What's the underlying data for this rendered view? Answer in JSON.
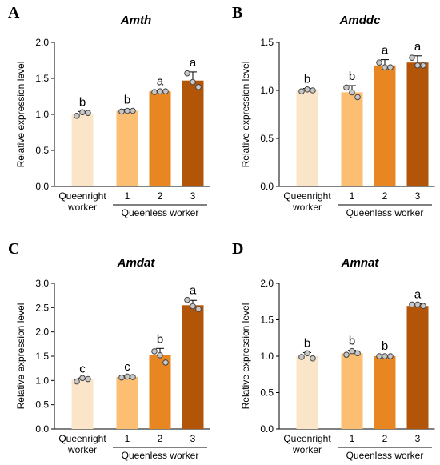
{
  "chart_data": [
    {
      "type": "bar",
      "panel": "A",
      "title": "Amth",
      "ylabel": "Relative expression level",
      "ylim": [
        0,
        2.0
      ],
      "yticks": [
        "0.0",
        "0.5",
        "1.0",
        "1.5",
        "2.0"
      ],
      "categories": [
        "Queenright worker",
        "1",
        "2",
        "3"
      ],
      "group_label": "Queenless worker",
      "values": [
        1.01,
        1.05,
        1.32,
        1.47
      ],
      "errors": [
        0.03,
        0.02,
        0.01,
        0.12
      ],
      "points": [
        [
          0.98,
          1.03,
          1.02
        ],
        [
          1.04,
          1.05,
          1.05
        ],
        [
          1.31,
          1.32,
          1.32
        ],
        [
          1.57,
          1.45,
          1.38
        ]
      ],
      "significance": [
        "b",
        "b",
        "a",
        "a"
      ]
    },
    {
      "type": "bar",
      "panel": "B",
      "title": "Amddc",
      "ylabel": "Relative expression level",
      "ylim": [
        0,
        1.5
      ],
      "yticks": [
        "0.0",
        "0.5",
        "1.0",
        "1.5"
      ],
      "categories": [
        "Queenright worker",
        "1",
        "2",
        "3"
      ],
      "group_label": "Queenless worker",
      "values": [
        1.0,
        0.98,
        1.26,
        1.29
      ],
      "errors": [
        0.02,
        0.07,
        0.06,
        0.07
      ],
      "points": [
        [
          0.99,
          1.01,
          1.0
        ],
        [
          1.03,
          0.98,
          0.93
        ],
        [
          1.29,
          1.24,
          1.24
        ],
        [
          1.34,
          1.26,
          1.26
        ]
      ],
      "significance": [
        "b",
        "b",
        "a",
        "a"
      ]
    },
    {
      "type": "bar",
      "panel": "C",
      "title": "Amdat",
      "ylabel": "Relative expression level",
      "ylim": [
        0,
        3.0
      ],
      "yticks": [
        "0.0",
        "0.5",
        "1.0",
        "1.5",
        "2.0",
        "2.5",
        "3.0"
      ],
      "categories": [
        "Queenright worker",
        "1",
        "2",
        "3"
      ],
      "group_label": "Queenless worker",
      "values": [
        1.02,
        1.07,
        1.52,
        2.55
      ],
      "errors": [
        0.03,
        0.02,
        0.14,
        0.1
      ],
      "points": [
        [
          0.98,
          1.05,
          1.03
        ],
        [
          1.06,
          1.08,
          1.07
        ],
        [
          1.6,
          1.52,
          1.37
        ],
        [
          2.66,
          2.53,
          2.47
        ]
      ],
      "significance": [
        "c",
        "c",
        "b",
        "a"
      ]
    },
    {
      "type": "bar",
      "panel": "D",
      "title": "Amnat",
      "ylabel": "Relative expression level",
      "ylim": [
        0,
        2.0
      ],
      "yticks": [
        "0.0",
        "0.5",
        "1.0",
        "1.5",
        "2.0"
      ],
      "categories": [
        "Queenright worker",
        "1",
        "2",
        "3"
      ],
      "group_label": "Queenless worker",
      "values": [
        1.0,
        1.04,
        1.0,
        1.69
      ],
      "errors": [
        0.05,
        0.04,
        0.01,
        0.03
      ],
      "points": [
        [
          0.99,
          1.04,
          0.97
        ],
        [
          1.02,
          1.07,
          1.04
        ],
        [
          1.0,
          1.0,
          1.0
        ],
        [
          1.71,
          1.71,
          1.69
        ]
      ],
      "significance": [
        "b",
        "b",
        "b",
        "a"
      ]
    }
  ],
  "colors": [
    "#fbe5c8",
    "#fbbe72",
    "#e88722",
    "#b35509"
  ]
}
